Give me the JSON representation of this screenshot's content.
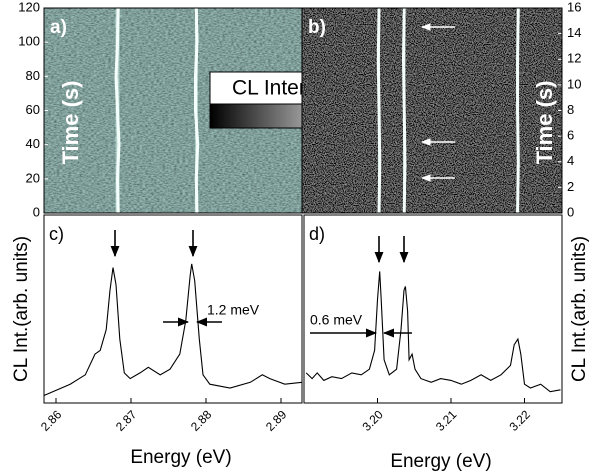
{
  "chart_data": [
    {
      "type": "heatmap",
      "label": "a)",
      "ylabel": "Time (s)",
      "yaxis": "left",
      "colorbar_label": "CL Intensity",
      "xlim": [
        2.8584,
        2.8928
      ],
      "ylim": [
        0,
        120
      ],
      "yticks": [
        0,
        20,
        40,
        60,
        80,
        100,
        120
      ],
      "t": [
        0,
        20,
        40,
        60,
        80,
        100,
        120
      ],
      "traces": [
        {
          "values": [
            2.8683,
            2.8682,
            2.8684,
            2.8682,
            2.868,
            2.8682,
            2.8683
          ]
        },
        {
          "values": [
            2.8788,
            2.8787,
            2.8789,
            2.8786,
            2.8786,
            2.8788,
            2.8787
          ]
        }
      ]
    },
    {
      "type": "heatmap",
      "label": "b)",
      "ylabel": "Time (s)",
      "yaxis": "right",
      "xlim": [
        3.19,
        3.2251
      ],
      "ylim": [
        0,
        16
      ],
      "yticks": [
        0,
        2,
        4,
        6,
        8,
        10,
        12,
        14,
        16
      ],
      "t": [
        0,
        4,
        8,
        12,
        16
      ],
      "traces": [
        {
          "values": [
            3.2004,
            3.2005,
            3.2004,
            3.2003,
            3.2004
          ]
        },
        {
          "values": [
            3.2038,
            3.2039,
            3.2038,
            3.2037,
            3.2038
          ]
        },
        {
          "values": [
            3.2191,
            3.2192,
            3.2191,
            3.2191,
            3.2192
          ]
        }
      ]
    },
    {
      "type": "line",
      "label": "c)",
      "ylabel": "CL Int.(arb. units)",
      "xlabel": "Energy (eV)",
      "yaxis": "left",
      "annotation": "1.2 meV",
      "xlim": [
        2.8584,
        2.8928
      ],
      "xticks": [
        2.86,
        2.87,
        2.88,
        2.89
      ],
      "ylim": [
        0,
        1
      ],
      "x": [
        2.8584,
        2.8619,
        2.8639,
        2.8652,
        2.8659,
        2.8667,
        2.8672,
        2.8676,
        2.868,
        2.8685,
        2.8691,
        2.8699,
        2.8712,
        2.8723,
        2.8739,
        2.8752,
        2.8765,
        2.8773,
        2.8779,
        2.8781,
        2.8785,
        2.8791,
        2.8796,
        2.8805,
        2.8832,
        2.8859,
        2.8875,
        2.8885,
        2.8905,
        2.8928
      ],
      "values": [
        0.04,
        0.1,
        0.15,
        0.26,
        0.28,
        0.39,
        0.6,
        0.72,
        0.63,
        0.34,
        0.16,
        0.13,
        0.16,
        0.19,
        0.15,
        0.18,
        0.26,
        0.44,
        0.68,
        0.74,
        0.65,
        0.34,
        0.15,
        0.1,
        0.08,
        0.11,
        0.15,
        0.13,
        0.1,
        0.11
      ]
    },
    {
      "type": "line",
      "label": "d)",
      "ylabel": "CL Int.(arb. units)",
      "xlabel": "Energy (eV)",
      "yaxis": "right",
      "annotation": "0.6 meV",
      "xlim": [
        3.19,
        3.2251
      ],
      "xticks": [
        {
          "value": 3.2,
          "label": "3.20"
        },
        {
          "value": 3.21,
          "label": "3.21"
        },
        {
          "value": 3.22,
          "label": "3.22"
        }
      ],
      "ylim": [
        0,
        1
      ],
      "x": [
        3.1903,
        3.1911,
        3.1918,
        3.1927,
        3.1938,
        3.1951,
        3.1965,
        3.1978,
        3.1989,
        3.1996,
        3.2,
        3.2003,
        3.2005,
        3.2009,
        3.2016,
        3.2026,
        3.2032,
        3.2036,
        3.2038,
        3.2041,
        3.2043,
        3.2047,
        3.2051,
        3.2059,
        3.2073,
        3.2086,
        3.21,
        3.2114,
        3.2127,
        3.2141,
        3.2154,
        3.2168,
        3.2181,
        3.2186,
        3.2191,
        3.2195,
        3.22,
        3.2208,
        3.2222,
        3.2235,
        3.2249
      ],
      "values": [
        0.16,
        0.13,
        0.16,
        0.12,
        0.14,
        0.13,
        0.16,
        0.15,
        0.18,
        0.28,
        0.55,
        0.7,
        0.55,
        0.23,
        0.15,
        0.18,
        0.39,
        0.6,
        0.62,
        0.49,
        0.23,
        0.26,
        0.18,
        0.13,
        0.11,
        0.13,
        0.12,
        0.1,
        0.12,
        0.15,
        0.12,
        0.15,
        0.2,
        0.31,
        0.34,
        0.26,
        0.1,
        0.08,
        0.1,
        0.06,
        0.07
      ]
    }
  ]
}
